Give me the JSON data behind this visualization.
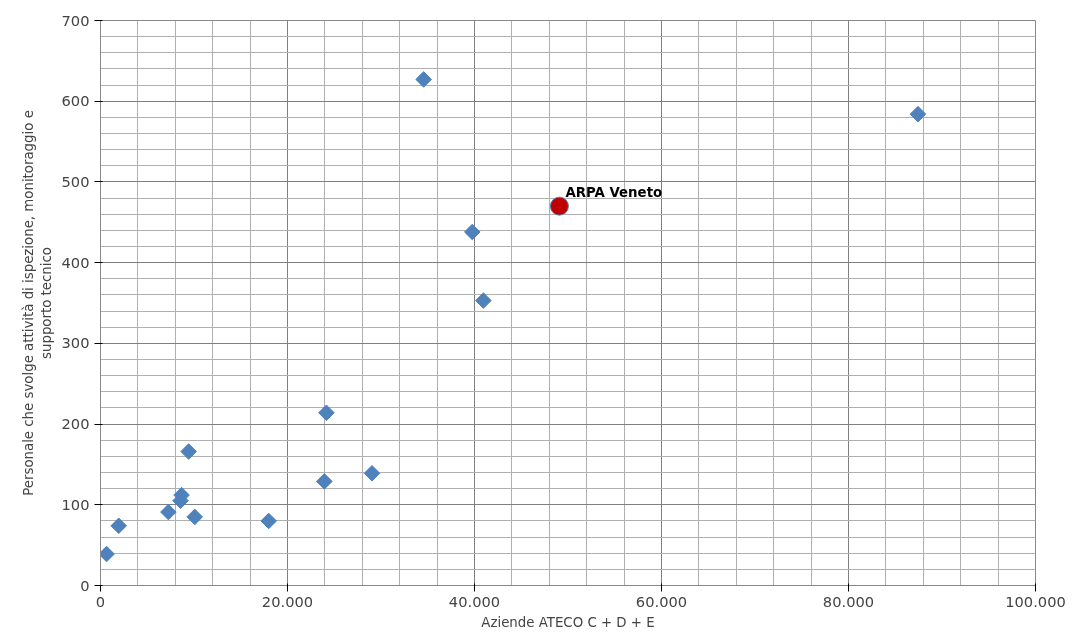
{
  "chart_data": {
    "type": "scatter",
    "xlabel": "Aziende ATECO C + D + E",
    "ylabel": "Personale che svolge attività di ispezione, monitoraggio e supporto tecnico",
    "xlim": [
      0,
      100000
    ],
    "ylim": [
      0,
      700
    ],
    "xticks": [
      0,
      {
        "value": 20000,
        "label": "20.000"
      },
      {
        "value": 40000,
        "label": "40.000"
      },
      {
        "value": 60000,
        "label": "60.000"
      },
      {
        "value": 80000,
        "label": "80.000"
      },
      {
        "value": 100000,
        "label": "100.000"
      }
    ],
    "yticks": [
      0,
      100,
      200,
      300,
      400,
      500,
      600,
      700
    ],
    "grid": true,
    "legend": false,
    "series": [
      {
        "color": "#4f81bd",
        "marker": "diamond",
        "x": [
          650,
          1950,
          7260,
          8670,
          8560,
          9430,
          10080,
          17990,
          23940,
          24160,
          29040,
          34560,
          39760,
          40950,
          87430
        ],
        "values": [
          39,
          74,
          91,
          112,
          105,
          166,
          85,
          80,
          129,
          214,
          139,
          627,
          438,
          353,
          584
        ]
      },
      {
        "name": "ARPA Veneto",
        "color": "#c00000",
        "marker": "circle",
        "x": [
          49080
        ],
        "values": [
          470
        ]
      }
    ]
  }
}
